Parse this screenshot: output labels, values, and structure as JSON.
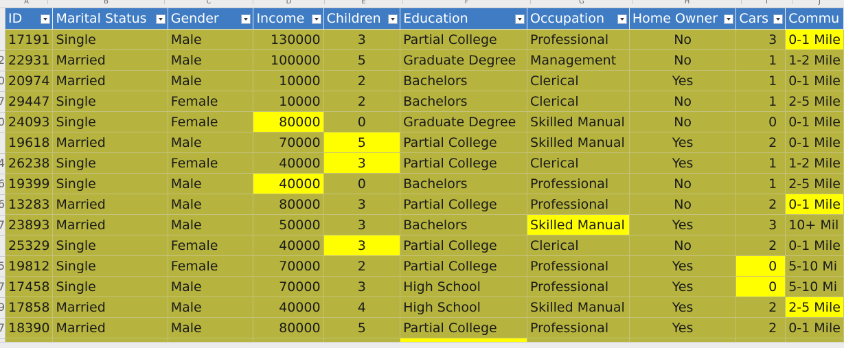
{
  "column_letters": [
    "A",
    "B",
    "C",
    "D",
    "E",
    "F",
    "G",
    "H",
    "I",
    "J"
  ],
  "row_number_fragments": [
    "",
    "2",
    "0",
    "7",
    "0",
    "",
    "4",
    "6",
    "6",
    "7",
    "",
    "5",
    "7",
    "9",
    "7"
  ],
  "headers": [
    {
      "label": "ID",
      "filter_active": true
    },
    {
      "label": "Marital Status"
    },
    {
      "label": "Gender"
    },
    {
      "label": "Income"
    },
    {
      "label": "Children"
    },
    {
      "label": "Education"
    },
    {
      "label": "Occupation"
    },
    {
      "label": "Home Owner"
    },
    {
      "label": "Cars"
    },
    {
      "label": "Commu"
    }
  ],
  "rows": [
    {
      "id": "17191",
      "marital": "Single",
      "gender": "Male",
      "income": "130000",
      "children": "3",
      "education": "Partial College",
      "occupation": "Professional",
      "home_owner": "No",
      "cars": "3",
      "commute": "0-1 Mile"
    },
    {
      "id": "22931",
      "marital": "Married",
      "gender": "Male",
      "income": "100000",
      "children": "5",
      "education": "Graduate Degree",
      "occupation": "Management",
      "home_owner": "No",
      "cars": "1",
      "commute": "1-2 Mile"
    },
    {
      "id": "20974",
      "marital": "Married",
      "gender": "Male",
      "income": "10000",
      "children": "2",
      "education": "Bachelors",
      "occupation": "Clerical",
      "home_owner": "Yes",
      "cars": "1",
      "commute": "0-1 Mile"
    },
    {
      "id": "29447",
      "marital": "Single",
      "gender": "Female",
      "income": "10000",
      "children": "2",
      "education": "Bachelors",
      "occupation": "Clerical",
      "home_owner": "No",
      "cars": "1",
      "commute": "2-5 Mile"
    },
    {
      "id": "24093",
      "marital": "Single",
      "gender": "Female",
      "income": "80000",
      "children": "0",
      "education": "Graduate Degree",
      "occupation": "Skilled Manual",
      "home_owner": "No",
      "cars": "0",
      "commute": "0-1 Mile"
    },
    {
      "id": "19618",
      "marital": "Married",
      "gender": "Male",
      "income": "70000",
      "children": "5",
      "education": "Partial College",
      "occupation": "Skilled Manual",
      "home_owner": "Yes",
      "cars": "2",
      "commute": "0-1 Mile"
    },
    {
      "id": "26238",
      "marital": "Single",
      "gender": "Female",
      "income": "40000",
      "children": "3",
      "education": "Partial College",
      "occupation": "Clerical",
      "home_owner": "Yes",
      "cars": "1",
      "commute": "1-2 Mile"
    },
    {
      "id": "19399",
      "marital": "Single",
      "gender": "Male",
      "income": "40000",
      "children": "0",
      "education": "Bachelors",
      "occupation": "Professional",
      "home_owner": "No",
      "cars": "1",
      "commute": "2-5 Mile"
    },
    {
      "id": "13283",
      "marital": "Married",
      "gender": "Male",
      "income": "80000",
      "children": "3",
      "education": "Partial College",
      "occupation": "Professional",
      "home_owner": "No",
      "cars": "2",
      "commute": "0-1 Mile"
    },
    {
      "id": "23893",
      "marital": "Married",
      "gender": "Male",
      "income": "50000",
      "children": "3",
      "education": "Bachelors",
      "occupation": "Skilled Manual",
      "home_owner": "Yes",
      "cars": "3",
      "commute": "10+ Mil"
    },
    {
      "id": "25329",
      "marital": "Single",
      "gender": "Female",
      "income": "40000",
      "children": "3",
      "education": "Partial College",
      "occupation": "Clerical",
      "home_owner": "No",
      "cars": "2",
      "commute": "0-1 Mile"
    },
    {
      "id": "19812",
      "marital": "Single",
      "gender": "Female",
      "income": "70000",
      "children": "2",
      "education": "Partial College",
      "occupation": "Professional",
      "home_owner": "Yes",
      "cars": "0",
      "commute": "5-10 Mi"
    },
    {
      "id": "17458",
      "marital": "Single",
      "gender": "Male",
      "income": "70000",
      "children": "3",
      "education": "High School",
      "occupation": "Professional",
      "home_owner": "Yes",
      "cars": "0",
      "commute": "5-10 Mi"
    },
    {
      "id": "17858",
      "marital": "Married",
      "gender": "Male",
      "income": "40000",
      "children": "4",
      "education": "High School",
      "occupation": "Skilled Manual",
      "home_owner": "Yes",
      "cars": "2",
      "commute": "2-5 Mile"
    },
    {
      "id": "18390",
      "marital": "Married",
      "gender": "Male",
      "income": "80000",
      "children": "5",
      "education": "Partial College",
      "occupation": "Professional",
      "home_owner": "Yes",
      "cars": "2",
      "commute": "0-1 Mile"
    }
  ],
  "highlighted_cells": [
    [
      0,
      "commute"
    ],
    [
      4,
      "income"
    ],
    [
      5,
      "children"
    ],
    [
      6,
      "children"
    ],
    [
      7,
      "income"
    ],
    [
      8,
      "commute"
    ],
    [
      9,
      "occupation"
    ],
    [
      10,
      "children"
    ],
    [
      11,
      "cars"
    ],
    [
      12,
      "cars"
    ],
    [
      13,
      "commute"
    ]
  ],
  "colors": {
    "header_bg": "#3f7cc4",
    "row_fill": "#b6b43e",
    "highlight": "#ffff00"
  }
}
